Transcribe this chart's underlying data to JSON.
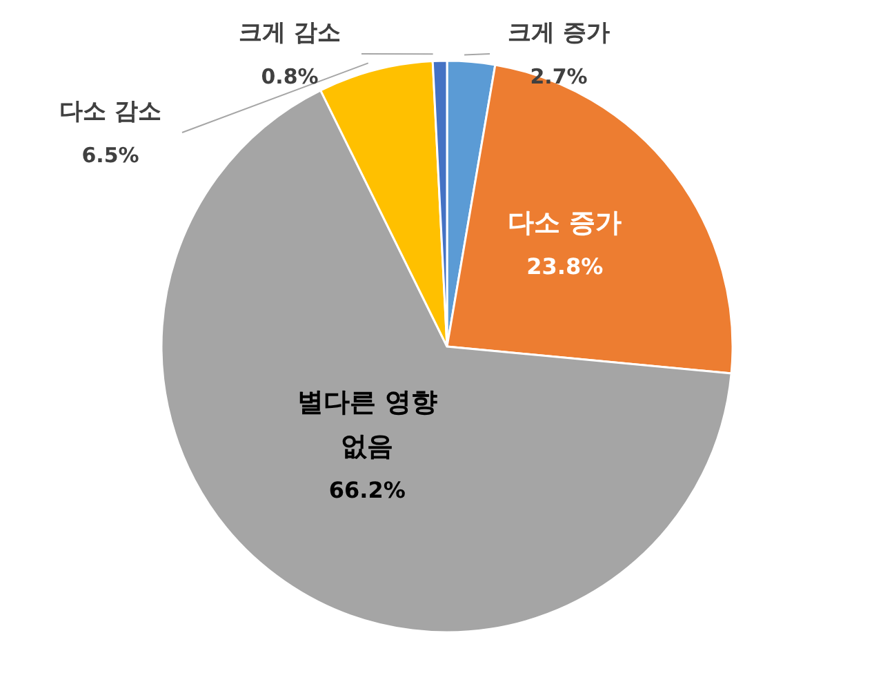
{
  "chart_data": {
    "type": "pie",
    "categories": [
      "크게 증가",
      "다소 증가",
      "별다른 영향 없음",
      "다소 감소",
      "크게 감소"
    ],
    "values": [
      2.7,
      23.8,
      66.2,
      6.5,
      0.8
    ],
    "value_labels": [
      "2.7%",
      "23.8%",
      "66.2%",
      "6.5%",
      "0.8%"
    ],
    "colors": [
      "#5b9bd5",
      "#ed7d31",
      "#a5a5a5",
      "#ffc000",
      "#4472c4"
    ],
    "legend": false
  }
}
